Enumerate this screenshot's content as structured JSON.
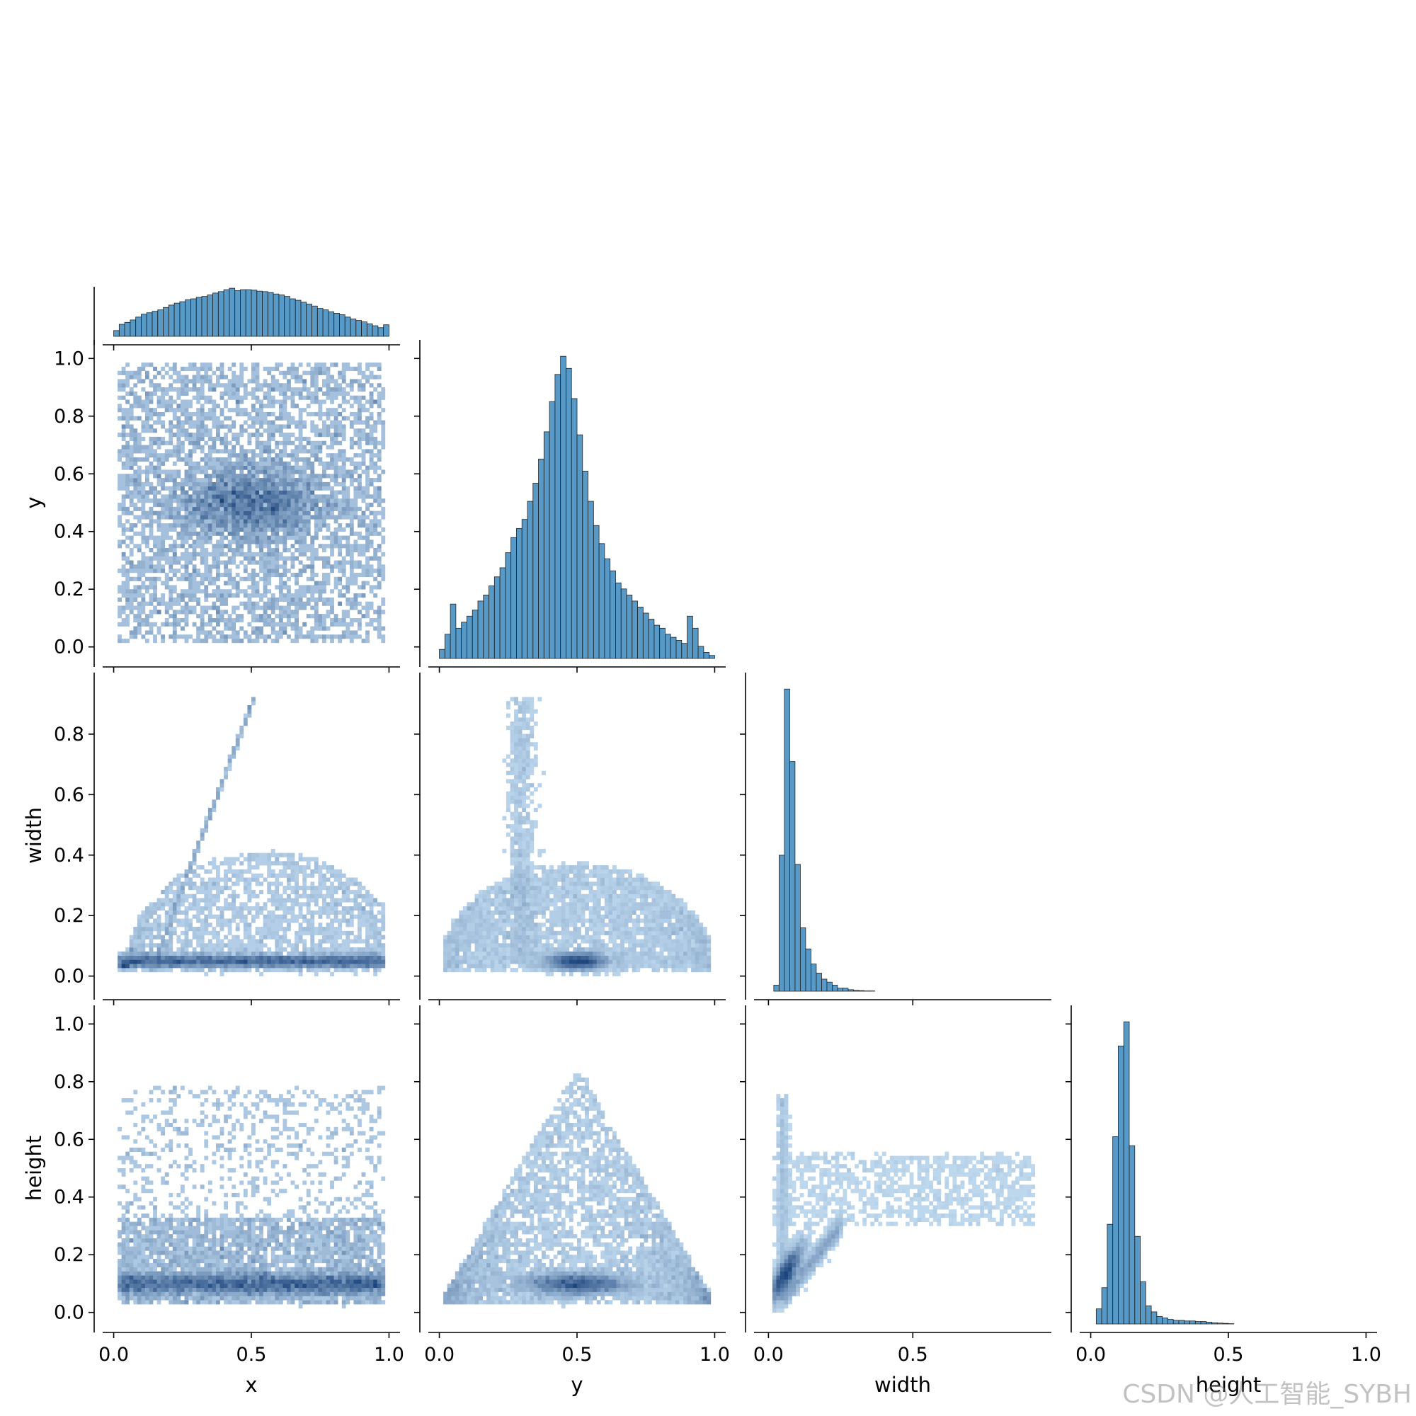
{
  "chart_data": {
    "type": "pairplot",
    "variables": [
      "x",
      "y",
      "width",
      "height"
    ],
    "color": "#1f77b4",
    "marginal_ranges": {
      "x": [
        0.0,
        1.0
      ],
      "y": [
        0.0,
        1.0
      ],
      "width": [
        0.0,
        0.92
      ],
      "height": [
        0.0,
        1.0
      ]
    },
    "axis_ticks": {
      "x": [
        "0.0",
        "0.5",
        "1.0"
      ],
      "y": [
        "0.0",
        "0.5",
        "1.0"
      ],
      "width": [
        "0.0",
        "0.5"
      ],
      "height": [
        "0.0",
        "0.5",
        "1.0"
      ]
    },
    "row_ticks": {
      "y": [
        "0.0",
        "0.2",
        "0.4",
        "0.6",
        "0.8",
        "1.0"
      ],
      "width": [
        "0.0",
        "0.2",
        "0.4",
        "0.6",
        "0.8"
      ],
      "height": [
        "0.0",
        "0.2",
        "0.4",
        "0.6",
        "0.8",
        "1.0"
      ]
    },
    "axis_labels": {
      "x": "x",
      "y": "y",
      "width": "width",
      "height": "height"
    },
    "histograms": {
      "x": {
        "bin_range": [
          0.0,
          1.0
        ],
        "bins": 50,
        "relative_heights": [
          0.12,
          0.25,
          0.29,
          0.34,
          0.4,
          0.46,
          0.49,
          0.52,
          0.55,
          0.6,
          0.65,
          0.69,
          0.72,
          0.76,
          0.78,
          0.81,
          0.83,
          0.86,
          0.9,
          0.93,
          0.97,
          1.0,
          0.95,
          0.97,
          0.97,
          0.96,
          0.94,
          0.93,
          0.91,
          0.88,
          0.86,
          0.83,
          0.78,
          0.75,
          0.71,
          0.67,
          0.63,
          0.58,
          0.55,
          0.51,
          0.48,
          0.45,
          0.4,
          0.36,
          0.33,
          0.3,
          0.26,
          0.22,
          0.18,
          0.24
        ]
      },
      "y": {
        "bin_range": [
          0.0,
          1.0
        ],
        "bins": 50,
        "relative_heights": [
          0.03,
          0.08,
          0.18,
          0.1,
          0.12,
          0.14,
          0.16,
          0.19,
          0.21,
          0.24,
          0.27,
          0.3,
          0.35,
          0.4,
          0.43,
          0.46,
          0.52,
          0.58,
          0.66,
          0.75,
          0.85,
          0.94,
          1.0,
          0.96,
          0.86,
          0.74,
          0.62,
          0.52,
          0.44,
          0.38,
          0.33,
          0.29,
          0.25,
          0.23,
          0.21,
          0.19,
          0.17,
          0.15,
          0.13,
          0.11,
          0.1,
          0.08,
          0.07,
          0.06,
          0.05,
          0.14,
          0.1,
          0.04,
          0.02,
          0.01
        ]
      },
      "width": {
        "bin_range": [
          0.0,
          0.92
        ],
        "bins": 50,
        "relative_heights": [
          0.0,
          0.02,
          0.45,
          1.0,
          0.76,
          0.42,
          0.21,
          0.14,
          0.09,
          0.06,
          0.04,
          0.03,
          0.02,
          0.01,
          0.01,
          0.005,
          0.003,
          0.002,
          0.001,
          0.001,
          0,
          0,
          0,
          0,
          0,
          0,
          0,
          0,
          0,
          0,
          0,
          0,
          0,
          0,
          0,
          0,
          0,
          0,
          0,
          0,
          0,
          0,
          0,
          0,
          0,
          0,
          0,
          0,
          0,
          0
        ]
      },
      "height": {
        "bin_range": [
          0.0,
          1.0
        ],
        "bins": 50,
        "relative_heights": [
          0.0,
          0.05,
          0.12,
          0.33,
          0.62,
          0.92,
          1.0,
          0.59,
          0.29,
          0.14,
          0.06,
          0.04,
          0.025,
          0.02,
          0.015,
          0.012,
          0.012,
          0.01,
          0.01,
          0.008,
          0.008,
          0.006,
          0.004,
          0.003,
          0.002,
          0.001,
          0,
          0,
          0,
          0,
          0,
          0,
          0,
          0,
          0,
          0,
          0,
          0,
          0,
          0,
          0,
          0,
          0,
          0,
          0,
          0,
          0,
          0,
          0,
          0
        ]
      }
    },
    "joint_distributions": [
      {
        "x": "x",
        "y": "y",
        "peak": [
          0.5,
          0.5
        ],
        "note": "dense core at center, roughly uniform square 0-1"
      },
      {
        "x": "x",
        "y": "width",
        "peak": [
          0.5,
          0.05
        ],
        "note": "dense band near width 0.05, diagonal streak toward (0.5, 0.92)"
      },
      {
        "x": "y",
        "y": "width",
        "peak": [
          0.5,
          0.05
        ],
        "note": "dense near (0.5, 0.05), vertical streak around y 0.3"
      },
      {
        "x": "x",
        "y": "height",
        "peak": [
          0.5,
          0.1
        ],
        "note": "dense band at height 0.1"
      },
      {
        "x": "y",
        "y": "height",
        "peak": [
          0.5,
          0.1
        ],
        "note": "triangular spread peaking at y 0.5"
      },
      {
        "x": "width",
        "y": "height",
        "peak": [
          0.05,
          0.1
        ],
        "note": "positive correlation cluster near origin"
      }
    ]
  },
  "watermark": "CSDN @人工智能_SYBH"
}
